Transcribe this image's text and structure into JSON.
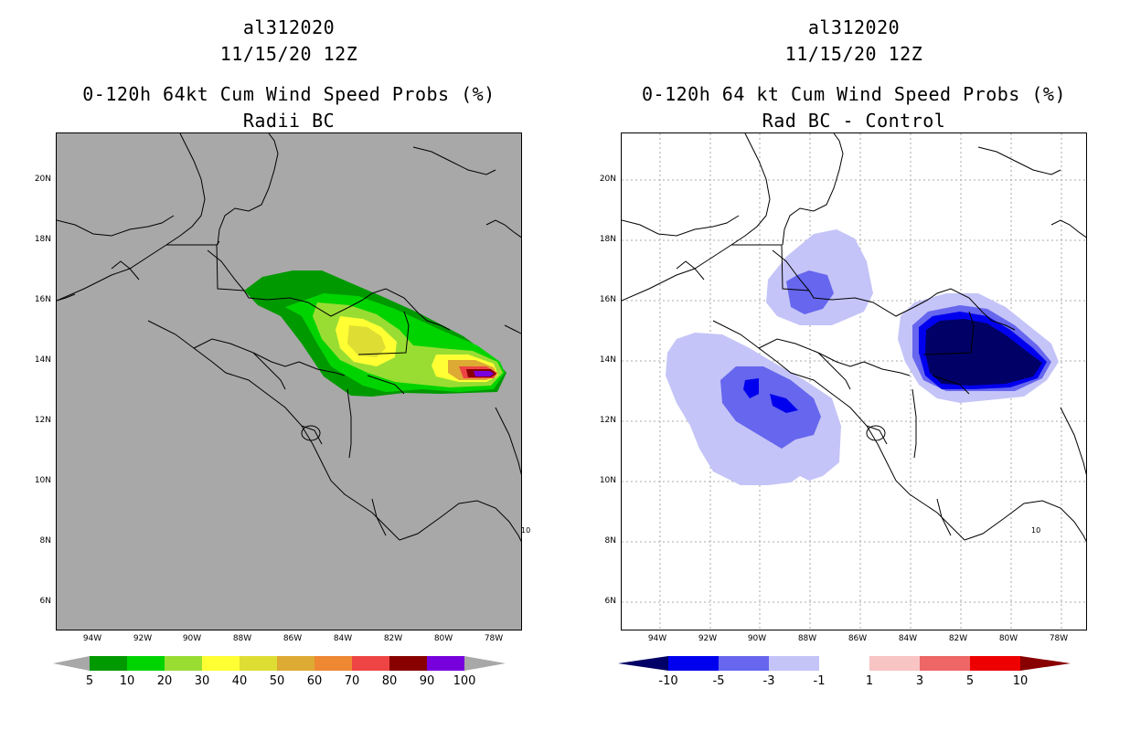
{
  "left_panel": {
    "storm_id": "al312020",
    "datetime": "11/15/20 12Z",
    "title": "0-120h 64kt Cum Wind Speed Probs (%)",
    "subtitle": "Radii BC",
    "colorbar": {
      "labels": [
        "5",
        "10",
        "20",
        "30",
        "40",
        "50",
        "60",
        "70",
        "80",
        "90",
        "100"
      ],
      "colors": [
        "#009900",
        "#00d400",
        "#99dd33",
        "#ffff33",
        "#dddd33",
        "#ddaa33",
        "#ee8833",
        "#ee4444",
        "#880000",
        "#7700dd"
      ]
    },
    "background_color": "#a8a8a8"
  },
  "right_panel": {
    "storm_id": "al312020",
    "datetime": "11/15/20 12Z",
    "title": "0-120h 64 kt Cum Wind Speed Probs (%)",
    "subtitle": "Rad BC - Control",
    "colorbar": {
      "labels": [
        "-10",
        "-5",
        "-3",
        "-1",
        "1",
        "3",
        "5",
        "10"
      ],
      "colors": [
        "#000066",
        "#0000ee",
        "#6666ee",
        "#c4c4f8",
        "#ffffff",
        "#f8c4c4",
        "#ee6666",
        "#ee0000",
        "#880000"
      ]
    },
    "background_color": "#ffffff"
  },
  "axes": {
    "lat_labels": [
      "20N",
      "18N",
      "16N",
      "14N",
      "12N",
      "10N",
      "8N",
      "6N"
    ],
    "lon_labels": [
      "94W",
      "92W",
      "90W",
      "88W",
      "86W",
      "84W",
      "82W",
      "80W",
      "78W"
    ],
    "place_label": "10"
  }
}
